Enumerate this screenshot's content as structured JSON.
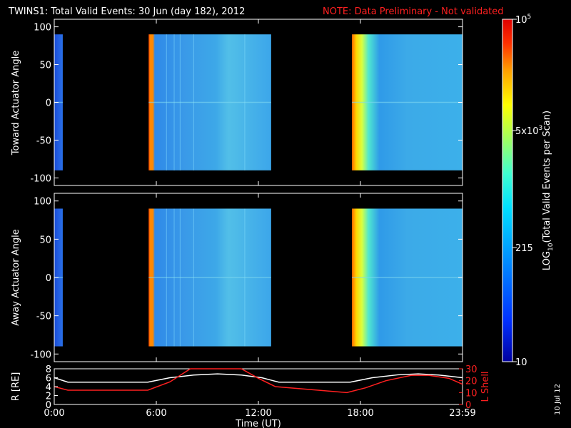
{
  "title": {
    "main": "TWINS1: Total Valid Events: 30 Jun (day 182), 2012",
    "note": "NOTE: Data Preliminary - Not validated",
    "note_color": "#ff2020"
  },
  "side_date": "10 Jul 12",
  "chart_data": [
    {
      "type": "heatmap",
      "panel": "toward",
      "ylabel": "Toward Actuator Angle",
      "ylim": [
        -110,
        110
      ],
      "yticks": [
        "100",
        "50",
        "0",
        "-50",
        "-100"
      ],
      "ytick_values": [
        100,
        50,
        0,
        -50,
        -100
      ],
      "xlim_hours": [
        0,
        24
      ],
      "data_y_range": [
        -90,
        90
      ],
      "segments_hours": [
        [
          0.0,
          0.5
        ],
        [
          5.55,
          12.75
        ],
        [
          17.5,
          24.0
        ]
      ]
    },
    {
      "type": "heatmap",
      "panel": "away",
      "ylabel": "Away Actuator Angle",
      "ylim": [
        -110,
        110
      ],
      "yticks": [
        "100",
        "50",
        "0",
        "-50",
        "-100"
      ],
      "ytick_values": [
        100,
        50,
        0,
        -50,
        -100
      ],
      "xlim_hours": [
        0,
        24
      ],
      "data_y_range": [
        -90,
        90
      ],
      "segments_hours": [
        [
          0.0,
          0.5
        ],
        [
          5.55,
          12.75
        ],
        [
          17.5,
          24.0
        ]
      ]
    },
    {
      "type": "line",
      "panel": "orbit",
      "ylabel_left": "R [RE]",
      "ylabel_right": "L Shell",
      "ylim_left": [
        0,
        8
      ],
      "ylim_right": [
        0,
        30
      ],
      "yticks_left": [
        "8",
        "6",
        "4",
        "2",
        "0"
      ],
      "yticks_right": [
        "30",
        "20",
        "10",
        "0"
      ],
      "xlabel": "Time (UT)",
      "xticks": [
        "0:00",
        "6:00",
        "12:00",
        "18:00",
        "23:59"
      ],
      "xtick_values": [
        0,
        6,
        12,
        18,
        24
      ],
      "series": [
        {
          "color": "#ffffff",
          "axis": "left",
          "points": [
            [
              0,
              6
            ],
            [
              0.8,
              5
            ],
            [
              5.5,
              5
            ],
            [
              6.8,
              6.0
            ],
            [
              8.2,
              6.6
            ],
            [
              9.6,
              6.85
            ],
            [
              11,
              6.6
            ],
            [
              12.2,
              6.0
            ],
            [
              13.2,
              5
            ],
            [
              17.4,
              5
            ],
            [
              18.7,
              6
            ],
            [
              20.2,
              6.65
            ],
            [
              21.4,
              6.85
            ],
            [
              22.6,
              6.6
            ],
            [
              24,
              6
            ]
          ]
        },
        {
          "color": "#ff2020",
          "axis": "right",
          "points": [
            [
              0,
              15
            ],
            [
              0.8,
              12
            ],
            [
              5.5,
              12
            ],
            [
              6.8,
              19
            ],
            [
              8.0,
              31
            ],
            [
              11.0,
              31
            ],
            [
              12.0,
              22
            ],
            [
              13.0,
              15
            ],
            [
              17.2,
              10
            ],
            [
              18.3,
              14
            ],
            [
              19.5,
              20
            ],
            [
              21.0,
              24.5
            ],
            [
              22.0,
              24.5
            ],
            [
              23.2,
              22
            ],
            [
              24,
              17
            ]
          ]
        }
      ]
    }
  ],
  "colorbar": {
    "label": "LOG10(Total Valid Events per Scan)",
    "label_main": "LOG",
    "label_sub": "10",
    "label_rest": "(Total Valid Events per Scan)",
    "ticks": [
      {
        "value": 100000,
        "label": "10",
        "sup": "5"
      },
      {
        "value": 5000,
        "label": "5x10",
        "sup": "3"
      },
      {
        "value": 215,
        "label": "215",
        "sup": ""
      },
      {
        "value": 10,
        "label": "10",
        "sup": ""
      }
    ],
    "range": [
      10,
      100000
    ],
    "colors": [
      "#0000a0",
      "#0030ff",
      "#0090ff",
      "#00e0ff",
      "#40ffd0",
      "#a0ff60",
      "#ffff00",
      "#ffa000",
      "#ff3000",
      "#e00000"
    ]
  }
}
